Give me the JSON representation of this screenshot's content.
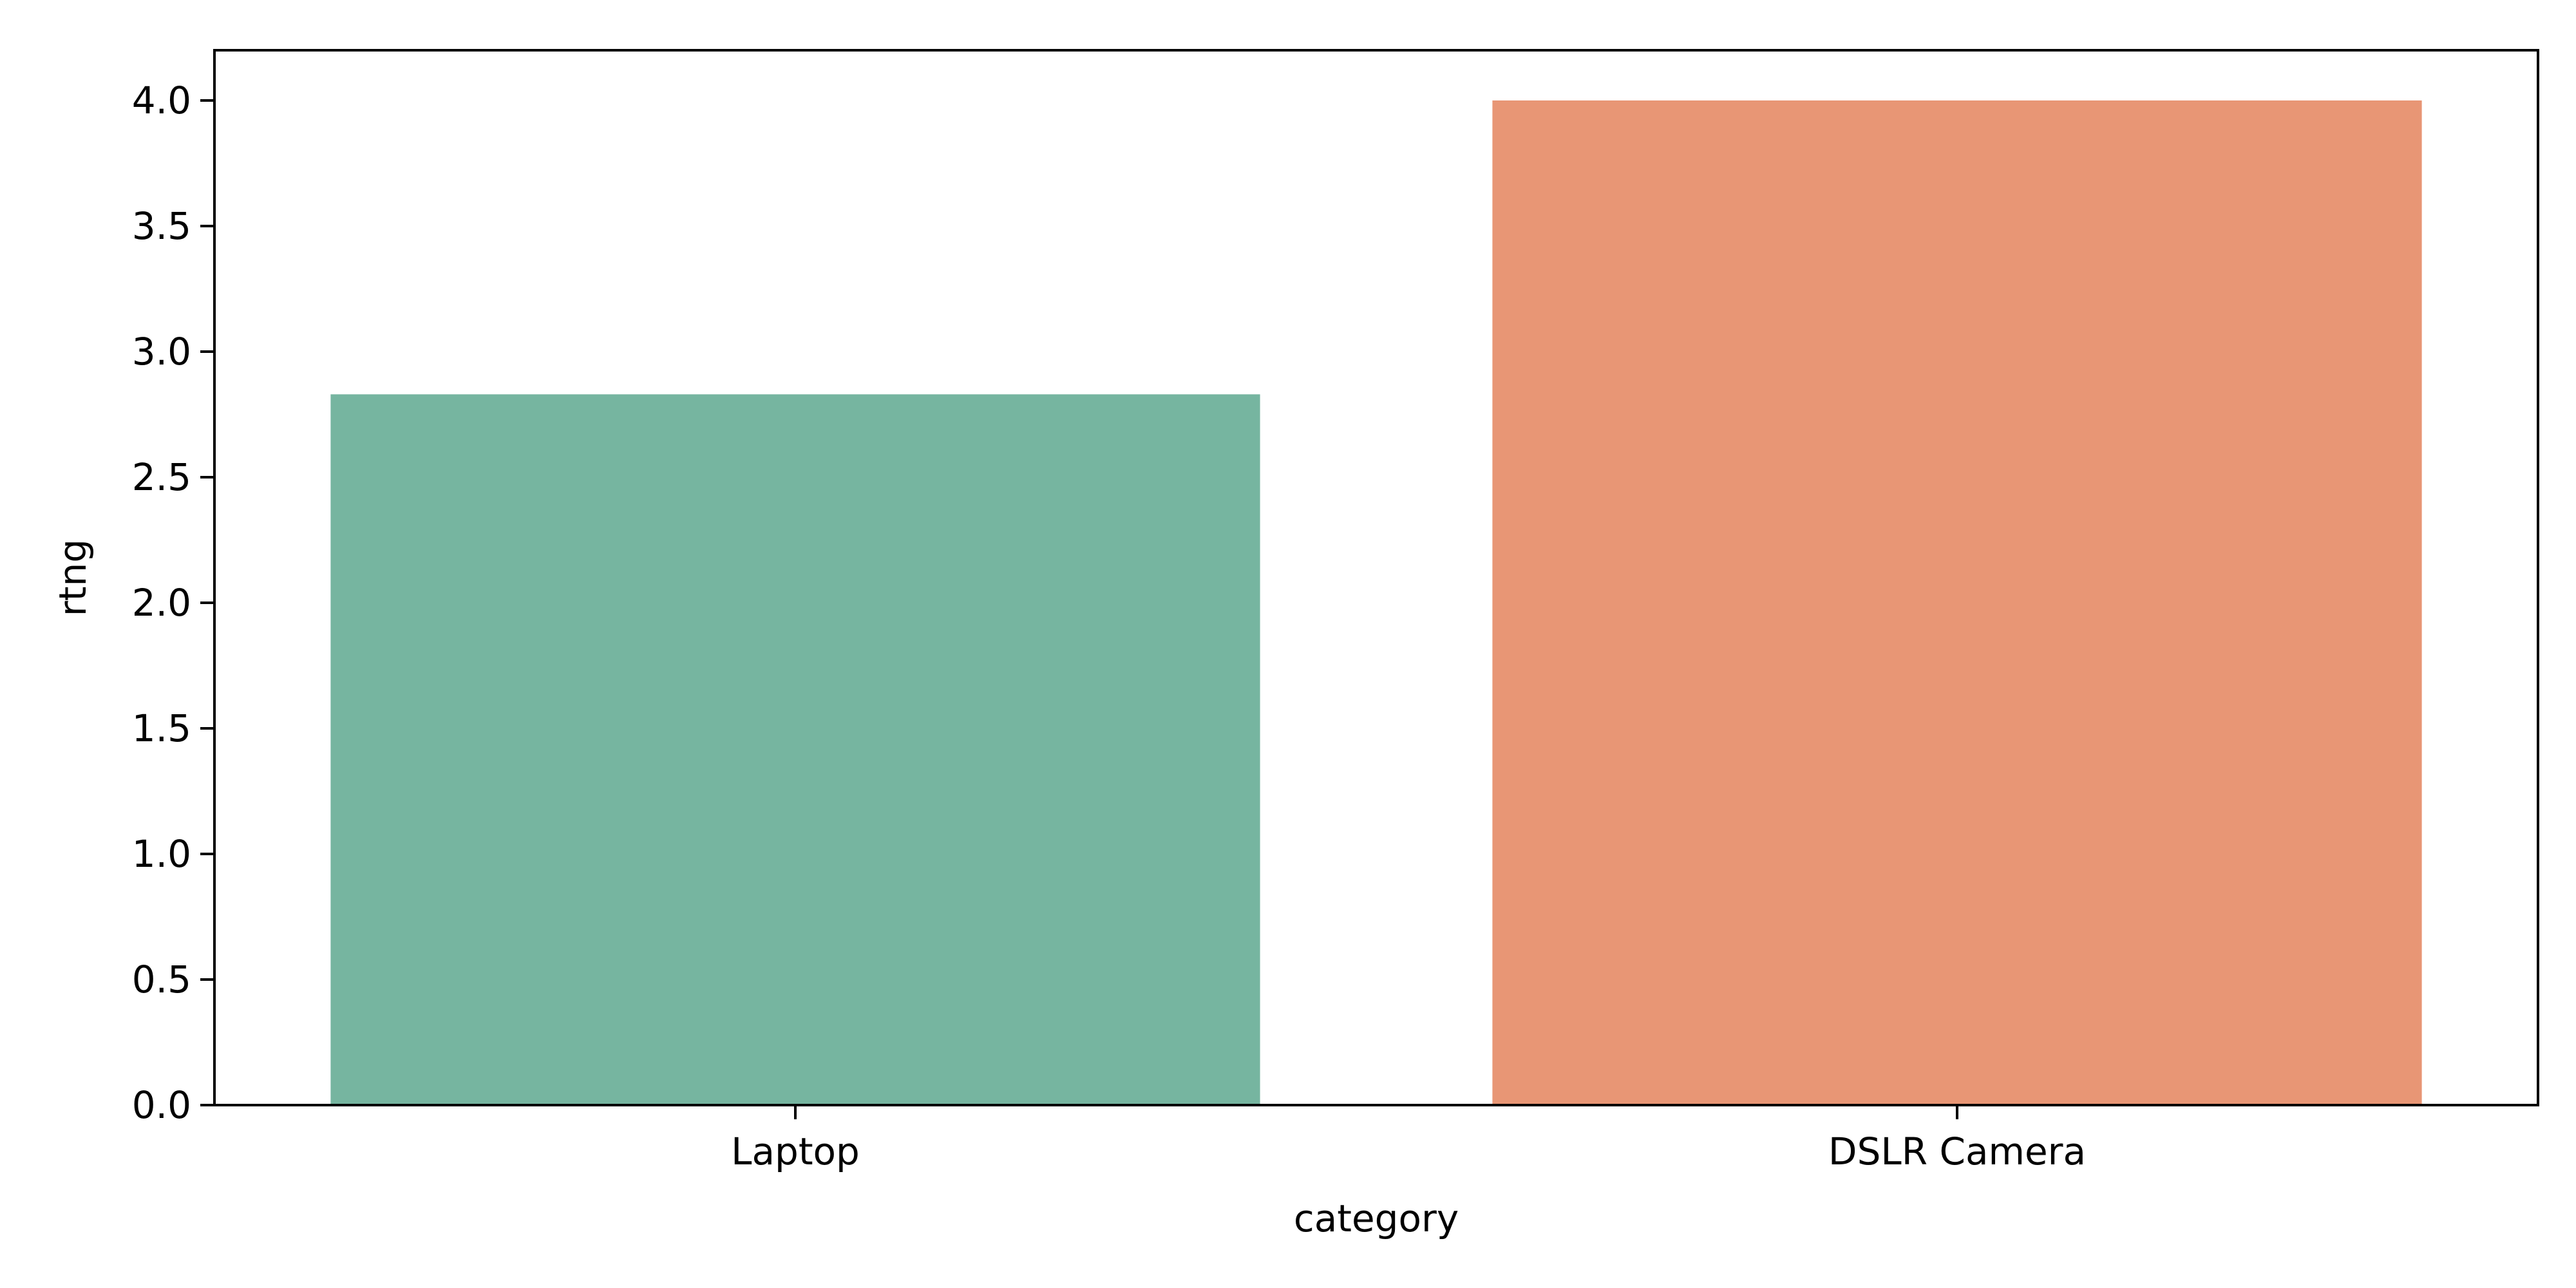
{
  "chart_data": {
    "type": "bar",
    "title": "",
    "xlabel": "category",
    "ylabel": "rtng",
    "categories": [
      "Laptop",
      "DSLR Camera"
    ],
    "values": [
      2.83,
      4.0
    ],
    "ylim": [
      0,
      4.2
    ],
    "yticks": [
      0.0,
      0.5,
      1.0,
      1.5,
      2.0,
      2.5,
      3.0,
      3.5,
      4.0
    ],
    "ytick_labels": [
      "0.0",
      "0.5",
      "1.0",
      "1.5",
      "2.0",
      "2.5",
      "3.0",
      "3.5",
      "4.0"
    ],
    "colors": [
      "#76b5a0",
      "#e89675"
    ],
    "grid": false,
    "legend": "none"
  }
}
